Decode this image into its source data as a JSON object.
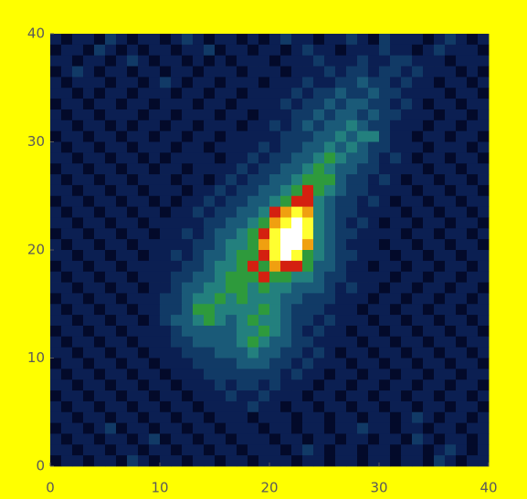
{
  "chart_data": {
    "type": "heatmap",
    "xlim": [
      0,
      40
    ],
    "ylim": [
      0,
      40
    ],
    "xticks": [
      0,
      10,
      20,
      30,
      40
    ],
    "yticks": [
      0,
      10,
      20,
      30,
      40
    ],
    "colormap": [
      "#030a2a",
      "#0b1f52",
      "#113a66",
      "#1a5a78",
      "#23807e",
      "#2e9a3c",
      "#d42010",
      "#f0a010",
      "#ffff30",
      "#ffffff"
    ],
    "values": [
      [
        1,
        0,
        1,
        1,
        0,
        2,
        1,
        0,
        1,
        1,
        0,
        1,
        2,
        1,
        0,
        1,
        1,
        0,
        1,
        0,
        1,
        2,
        1,
        1,
        0,
        1,
        1,
        2,
        1,
        0,
        2,
        1,
        1,
        1,
        0,
        1,
        2,
        1,
        0,
        1
      ],
      [
        0,
        1,
        1,
        0,
        2,
        1,
        0,
        1,
        0,
        1,
        1,
        0,
        1,
        1,
        2,
        0,
        1,
        1,
        0,
        1,
        1,
        0,
        1,
        2,
        1,
        1,
        0,
        1,
        1,
        1,
        2,
        1,
        1,
        0,
        1,
        2,
        1,
        1,
        1,
        0
      ],
      [
        1,
        1,
        0,
        1,
        1,
        0,
        1,
        2,
        1,
        0,
        1,
        1,
        0,
        1,
        0,
        1,
        0,
        1,
        1,
        1,
        0,
        1,
        1,
        1,
        2,
        1,
        1,
        1,
        2,
        1,
        1,
        2,
        2,
        1,
        1,
        1,
        0,
        1,
        1,
        1
      ],
      [
        0,
        1,
        2,
        1,
        0,
        1,
        1,
        0,
        1,
        1,
        0,
        1,
        1,
        0,
        1,
        1,
        1,
        0,
        1,
        1,
        1,
        0,
        1,
        1,
        1,
        2,
        1,
        2,
        2,
        1,
        2,
        2,
        1,
        2,
        1,
        1,
        1,
        0,
        1,
        0
      ],
      [
        1,
        0,
        1,
        1,
        1,
        0,
        1,
        1,
        0,
        1,
        2,
        1,
        0,
        1,
        1,
        0,
        1,
        1,
        1,
        0,
        1,
        1,
        1,
        2,
        1,
        1,
        2,
        2,
        3,
        2,
        2,
        1,
        2,
        1,
        1,
        0,
        1,
        1,
        0,
        1
      ],
      [
        1,
        1,
        0,
        1,
        0,
        1,
        1,
        0,
        1,
        1,
        1,
        0,
        1,
        1,
        0,
        1,
        1,
        0,
        1,
        1,
        1,
        1,
        2,
        1,
        2,
        2,
        3,
        2,
        2,
        3,
        2,
        2,
        1,
        1,
        1,
        1,
        0,
        1,
        1,
        0
      ],
      [
        0,
        1,
        1,
        0,
        1,
        1,
        0,
        1,
        1,
        0,
        1,
        1,
        1,
        0,
        1,
        1,
        0,
        1,
        1,
        1,
        1,
        2,
        1,
        2,
        2,
        3,
        2,
        3,
        3,
        2,
        2,
        1,
        2,
        1,
        0,
        1,
        1,
        0,
        1,
        1
      ],
      [
        1,
        0,
        1,
        1,
        0,
        1,
        1,
        1,
        0,
        1,
        1,
        0,
        1,
        1,
        1,
        0,
        1,
        1,
        0,
        1,
        1,
        1,
        2,
        2,
        3,
        2,
        3,
        3,
        2,
        3,
        2,
        2,
        1,
        1,
        1,
        0,
        1,
        1,
        0,
        1
      ],
      [
        1,
        1,
        0,
        1,
        1,
        0,
        1,
        0,
        1,
        1,
        0,
        1,
        1,
        0,
        1,
        1,
        1,
        0,
        1,
        1,
        2,
        1,
        2,
        3,
        2,
        3,
        3,
        4,
        3,
        2,
        2,
        1,
        1,
        1,
        0,
        1,
        1,
        0,
        1,
        1
      ],
      [
        0,
        1,
        1,
        0,
        1,
        1,
        0,
        1,
        1,
        0,
        1,
        1,
        0,
        1,
        1,
        0,
        1,
        1,
        1,
        1,
        1,
        2,
        2,
        2,
        3,
        3,
        4,
        3,
        4,
        4,
        2,
        1,
        1,
        0,
        1,
        1,
        0,
        1,
        1,
        0
      ],
      [
        1,
        0,
        1,
        1,
        0,
        1,
        1,
        0,
        1,
        1,
        1,
        0,
        1,
        1,
        0,
        1,
        1,
        1,
        1,
        2,
        1,
        2,
        2,
        3,
        3,
        4,
        3,
        4,
        3,
        2,
        2,
        1,
        1,
        1,
        0,
        1,
        1,
        1,
        0,
        1
      ],
      [
        1,
        1,
        0,
        1,
        1,
        0,
        1,
        1,
        0,
        1,
        0,
        1,
        1,
        1,
        1,
        0,
        1,
        1,
        2,
        1,
        2,
        2,
        3,
        3,
        4,
        5,
        4,
        3,
        3,
        2,
        1,
        2,
        1,
        0,
        1,
        1,
        0,
        1,
        1,
        0
      ],
      [
        0,
        1,
        1,
        0,
        1,
        1,
        0,
        1,
        1,
        0,
        1,
        1,
        0,
        1,
        1,
        1,
        1,
        2,
        1,
        2,
        2,
        3,
        3,
        4,
        5,
        4,
        3,
        3,
        2,
        2,
        1,
        1,
        1,
        1,
        0,
        1,
        1,
        0,
        1,
        1
      ],
      [
        1,
        0,
        1,
        1,
        0,
        1,
        1,
        0,
        1,
        1,
        1,
        0,
        1,
        1,
        0,
        1,
        2,
        1,
        2,
        2,
        3,
        3,
        4,
        5,
        5,
        5,
        3,
        2,
        2,
        1,
        2,
        1,
        0,
        1,
        1,
        0,
        1,
        1,
        0,
        1
      ],
      [
        1,
        1,
        0,
        1,
        1,
        0,
        1,
        1,
        0,
        1,
        1,
        1,
        0,
        1,
        1,
        2,
        1,
        2,
        2,
        3,
        3,
        4,
        5,
        6,
        5,
        4,
        3,
        2,
        2,
        1,
        1,
        1,
        1,
        0,
        1,
        1,
        0,
        1,
        1,
        0
      ],
      [
        0,
        1,
        1,
        0,
        1,
        1,
        0,
        1,
        1,
        0,
        1,
        0,
        1,
        1,
        2,
        1,
        2,
        2,
        3,
        3,
        4,
        5,
        6,
        6,
        4,
        3,
        2,
        2,
        1,
        2,
        1,
        0,
        1,
        1,
        0,
        1,
        1,
        0,
        1,
        1
      ],
      [
        1,
        0,
        1,
        1,
        0,
        1,
        1,
        0,
        1,
        1,
        0,
        1,
        1,
        2,
        1,
        2,
        2,
        3,
        3,
        4,
        6,
        7,
        8,
        7,
        4,
        3,
        2,
        2,
        1,
        1,
        1,
        1,
        0,
        1,
        1,
        0,
        1,
        1,
        0,
        1
      ],
      [
        1,
        1,
        0,
        1,
        1,
        0,
        1,
        1,
        0,
        1,
        1,
        1,
        1,
        1,
        2,
        2,
        3,
        3,
        4,
        5,
        7,
        8,
        9,
        8,
        4,
        3,
        2,
        1,
        2,
        1,
        0,
        1,
        1,
        0,
        1,
        1,
        0,
        1,
        1,
        0
      ],
      [
        0,
        1,
        1,
        0,
        1,
        1,
        0,
        1,
        1,
        0,
        1,
        1,
        2,
        1,
        2,
        3,
        3,
        4,
        5,
        6,
        8,
        9,
        9,
        8,
        4,
        3,
        2,
        2,
        1,
        1,
        1,
        1,
        0,
        1,
        1,
        0,
        1,
        1,
        0,
        1
      ],
      [
        1,
        0,
        1,
        1,
        0,
        1,
        1,
        0,
        1,
        1,
        1,
        1,
        1,
        2,
        2,
        3,
        4,
        4,
        5,
        7,
        8,
        9,
        9,
        7,
        4,
        3,
        2,
        1,
        1,
        1,
        0,
        1,
        1,
        0,
        1,
        1,
        0,
        1,
        1,
        0
      ],
      [
        1,
        1,
        0,
        1,
        1,
        0,
        1,
        1,
        0,
        1,
        1,
        2,
        1,
        2,
        3,
        3,
        4,
        5,
        5,
        6,
        8,
        9,
        8,
        5,
        4,
        3,
        2,
        2,
        1,
        1,
        1,
        0,
        1,
        1,
        0,
        1,
        1,
        0,
        1,
        1
      ],
      [
        0,
        1,
        1,
        0,
        1,
        1,
        0,
        1,
        1,
        1,
        1,
        1,
        2,
        2,
        3,
        4,
        4,
        5,
        6,
        5,
        7,
        6,
        6,
        5,
        3,
        3,
        2,
        1,
        1,
        0,
        1,
        1,
        0,
        1,
        1,
        0,
        1,
        1,
        0,
        1
      ],
      [
        1,
        0,
        1,
        1,
        0,
        1,
        1,
        0,
        1,
        1,
        1,
        2,
        2,
        3,
        3,
        4,
        5,
        5,
        5,
        6,
        5,
        5,
        4,
        4,
        3,
        2,
        2,
        1,
        1,
        1,
        1,
        0,
        1,
        1,
        0,
        1,
        1,
        0,
        1,
        1
      ],
      [
        1,
        1,
        0,
        1,
        1,
        0,
        1,
        1,
        0,
        1,
        1,
        2,
        3,
        3,
        4,
        4,
        5,
        5,
        4,
        5,
        4,
        4,
        3,
        3,
        3,
        2,
        1,
        2,
        1,
        1,
        0,
        1,
        1,
        0,
        1,
        1,
        0,
        1,
        1,
        0
      ],
      [
        0,
        1,
        1,
        0,
        1,
        1,
        0,
        1,
        1,
        1,
        2,
        2,
        3,
        4,
        4,
        5,
        4,
        5,
        4,
        4,
        4,
        3,
        3,
        2,
        2,
        2,
        1,
        1,
        1,
        0,
        1,
        1,
        0,
        1,
        1,
        0,
        1,
        1,
        0,
        1
      ],
      [
        1,
        0,
        1,
        1,
        0,
        1,
        1,
        0,
        1,
        1,
        2,
        2,
        3,
        5,
        5,
        4,
        4,
        4,
        4,
        5,
        4,
        3,
        2,
        2,
        2,
        1,
        1,
        1,
        0,
        1,
        1,
        0,
        1,
        1,
        0,
        1,
        1,
        0,
        1,
        1
      ],
      [
        1,
        1,
        0,
        1,
        1,
        0,
        1,
        1,
        0,
        1,
        2,
        3,
        3,
        4,
        5,
        4,
        3,
        4,
        5,
        4,
        4,
        3,
        2,
        2,
        1,
        2,
        1,
        1,
        1,
        0,
        1,
        1,
        0,
        1,
        1,
        0,
        1,
        1,
        0,
        1
      ],
      [
        0,
        1,
        1,
        0,
        1,
        1,
        0,
        1,
        1,
        1,
        1,
        2,
        3,
        3,
        3,
        3,
        3,
        4,
        4,
        5,
        4,
        3,
        2,
        1,
        2,
        1,
        1,
        0,
        1,
        1,
        0,
        1,
        1,
        0,
        1,
        1,
        0,
        1,
        1,
        0
      ],
      [
        1,
        0,
        1,
        1,
        0,
        1,
        1,
        0,
        1,
        1,
        1,
        2,
        2,
        3,
        3,
        3,
        3,
        4,
        5,
        4,
        3,
        3,
        2,
        2,
        1,
        1,
        1,
        1,
        0,
        1,
        1,
        0,
        1,
        1,
        0,
        1,
        1,
        0,
        1,
        1
      ],
      [
        1,
        1,
        0,
        1,
        1,
        0,
        1,
        1,
        0,
        1,
        1,
        1,
        2,
        2,
        2,
        3,
        3,
        3,
        4,
        3,
        3,
        2,
        2,
        1,
        2,
        1,
        0,
        1,
        1,
        0,
        1,
        1,
        0,
        1,
        1,
        0,
        1,
        1,
        0,
        1
      ],
      [
        0,
        1,
        1,
        0,
        1,
        1,
        0,
        1,
        1,
        0,
        1,
        1,
        1,
        2,
        2,
        2,
        2,
        3,
        3,
        3,
        2,
        2,
        1,
        2,
        1,
        1,
        1,
        0,
        1,
        1,
        0,
        1,
        1,
        0,
        1,
        1,
        0,
        1,
        1,
        0
      ],
      [
        1,
        0,
        1,
        1,
        0,
        1,
        1,
        0,
        1,
        1,
        0,
        1,
        1,
        1,
        2,
        2,
        2,
        2,
        2,
        2,
        2,
        1,
        2,
        1,
        1,
        0,
        1,
        1,
        0,
        1,
        1,
        0,
        1,
        1,
        0,
        1,
        1,
        0,
        1,
        1
      ],
      [
        1,
        1,
        0,
        1,
        1,
        0,
        1,
        1,
        0,
        1,
        1,
        0,
        1,
        1,
        1,
        2,
        1,
        2,
        2,
        1,
        2,
        1,
        1,
        1,
        0,
        1,
        1,
        0,
        1,
        1,
        0,
        1,
        1,
        0,
        1,
        1,
        0,
        1,
        1,
        0
      ],
      [
        0,
        1,
        1,
        0,
        1,
        1,
        0,
        1,
        1,
        0,
        1,
        1,
        0,
        1,
        1,
        1,
        2,
        1,
        1,
        2,
        1,
        1,
        1,
        0,
        1,
        1,
        0,
        1,
        1,
        0,
        1,
        1,
        0,
        1,
        1,
        0,
        1,
        1,
        0,
        1
      ],
      [
        1,
        0,
        1,
        1,
        0,
        1,
        1,
        0,
        1,
        1,
        0,
        1,
        1,
        0,
        1,
        1,
        1,
        1,
        2,
        1,
        1,
        0,
        1,
        1,
        0,
        1,
        1,
        0,
        1,
        1,
        0,
        1,
        1,
        0,
        1,
        1,
        0,
        1,
        1,
        0
      ],
      [
        1,
        1,
        0,
        1,
        1,
        0,
        1,
        1,
        0,
        1,
        1,
        0,
        1,
        1,
        0,
        1,
        1,
        1,
        0,
        1,
        1,
        1,
        0,
        1,
        1,
        0,
        1,
        1,
        0,
        1,
        1,
        0,
        1,
        2,
        1,
        0,
        1,
        1,
        0,
        1
      ],
      [
        0,
        1,
        1,
        0,
        1,
        2,
        0,
        1,
        1,
        0,
        1,
        1,
        0,
        1,
        1,
        0,
        1,
        1,
        1,
        0,
        1,
        1,
        0,
        1,
        1,
        0,
        1,
        1,
        2,
        1,
        1,
        0,
        1,
        1,
        0,
        1,
        1,
        0,
        1,
        1
      ],
      [
        1,
        0,
        1,
        1,
        0,
        1,
        1,
        0,
        1,
        2,
        0,
        1,
        1,
        0,
        1,
        1,
        0,
        1,
        1,
        1,
        0,
        1,
        1,
        0,
        1,
        1,
        0,
        1,
        1,
        0,
        1,
        1,
        0,
        2,
        1,
        0,
        1,
        1,
        0,
        1
      ],
      [
        1,
        1,
        0,
        1,
        1,
        0,
        1,
        1,
        0,
        1,
        1,
        0,
        1,
        1,
        0,
        1,
        1,
        0,
        1,
        1,
        1,
        0,
        1,
        2,
        1,
        0,
        1,
        1,
        0,
        1,
        1,
        0,
        1,
        1,
        0,
        1,
        2,
        1,
        0,
        1
      ],
      [
        0,
        1,
        1,
        0,
        1,
        1,
        0,
        2,
        1,
        0,
        1,
        1,
        0,
        1,
        1,
        0,
        1,
        1,
        0,
        1,
        1,
        1,
        0,
        1,
        1,
        0,
        1,
        1,
        0,
        1,
        1,
        0,
        1,
        1,
        0,
        2,
        1,
        0,
        1,
        1
      ]
    ]
  }
}
